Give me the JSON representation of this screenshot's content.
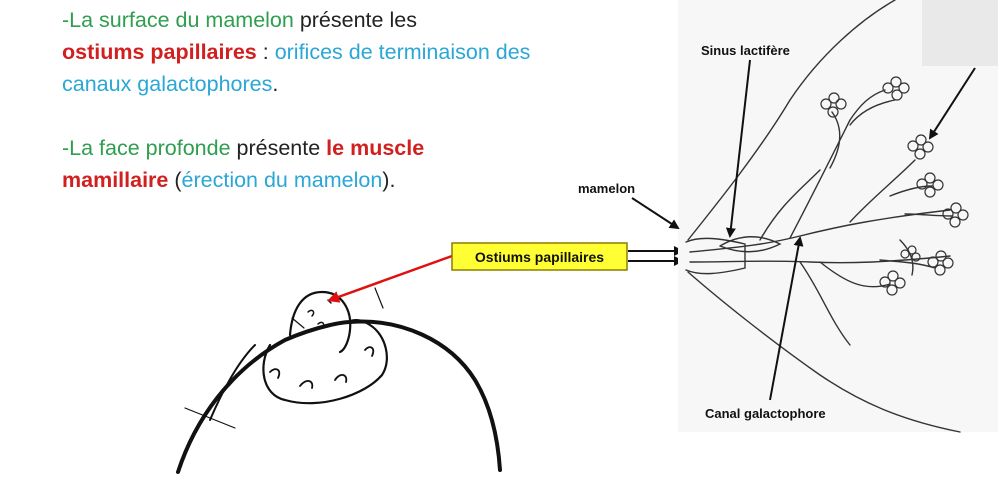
{
  "paragraph1": {
    "prefix": "-La surface du mamelon",
    "mid": " présente les",
    "highlight": "ostiums papillaires",
    "colon": " : ",
    "definition": "orifices de terminaison des canaux galactophores",
    "end": "."
  },
  "paragraph2": {
    "prefix": "-La face profonde",
    "mid": " présente ",
    "highlight": "le muscle mamillaire",
    "open": " (",
    "definition": "érection du mamelon",
    "close": ")."
  },
  "diagram": {
    "callout": "Ostiums papillaires",
    "label_sinus": "Sinus lactifère",
    "label_mamelon": "mamelon",
    "label_canal": "Canal galactophore"
  },
  "colors": {
    "green": "#2e9e4f",
    "red": "#d21f1f",
    "blue": "#2aa7d6",
    "callout_bg": "#ffff33",
    "callout_border": "#8c7d00",
    "arrow_red": "#e01010"
  }
}
